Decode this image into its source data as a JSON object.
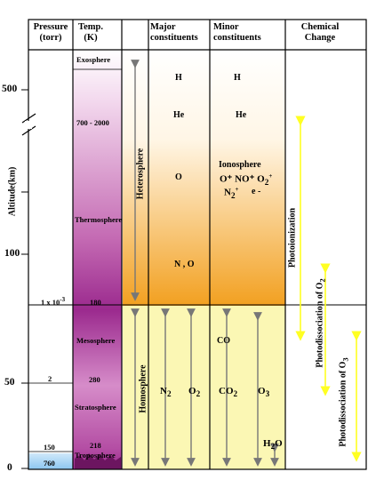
{
  "headers": {
    "pressure": "Pressure\n(torr)",
    "temp": "Temp.\n(K)",
    "major": "Major\nconstituents",
    "minor": "Minor\nconstituents",
    "chemical": "Chemical\nChange"
  },
  "altitude_axis": {
    "label": "Altitude(km)",
    "ticks": [
      "500",
      "100",
      "50",
      "0"
    ]
  },
  "pressure_values": [
    "1 x 10",
    "-3",
    "2",
    "150",
    "760"
  ],
  "temperature_values": [
    "700 - 2000",
    "180",
    "280",
    "218"
  ],
  "layers": [
    "Exosphere",
    "Thermosphere",
    "Mesosphere",
    "Stratosphere",
    "Troposphere"
  ],
  "regions": [
    "Heterosphere",
    "Homosphere"
  ],
  "major_constituents": {
    "h": "H",
    "he": "He",
    "o": "O",
    "n_o": "N , O",
    "n2": "N",
    "n2_sub": "2",
    "o2": "O",
    "o2_sub": "2"
  },
  "minor_constituents": {
    "h": "H",
    "he": "He",
    "ionosphere": "Ionosphere",
    "ions_line": "O⁺ NO⁺",
    "o2plus": "O",
    "o2plus_sub": "2",
    "o2plus_sup": "+",
    "n2plus": "N",
    "n2plus_sub": "2",
    "n2plus_sup": "+",
    "electron": "e -",
    "co": "CO",
    "co2": "CO",
    "co2_sub": "2",
    "o3": "O",
    "o3_sub": "3",
    "h2o_h": "H",
    "h2o_sub": "2",
    "h2o_o": "O"
  },
  "chemical_change": [
    "Photoionization",
    "Photodissociation of O",
    "2",
    "Photodissociation of O",
    "3"
  ],
  "colors": {
    "upper_gradient_top": "#ffffff",
    "upper_gradient_bottom": "#f2a020",
    "lower_band": "#fbf7b4",
    "temp_column": "#9b2a8e",
    "bottom_band": "#a9d3f3",
    "arrow_gray": "#777777",
    "arrow_yellow": "#ffff22"
  }
}
